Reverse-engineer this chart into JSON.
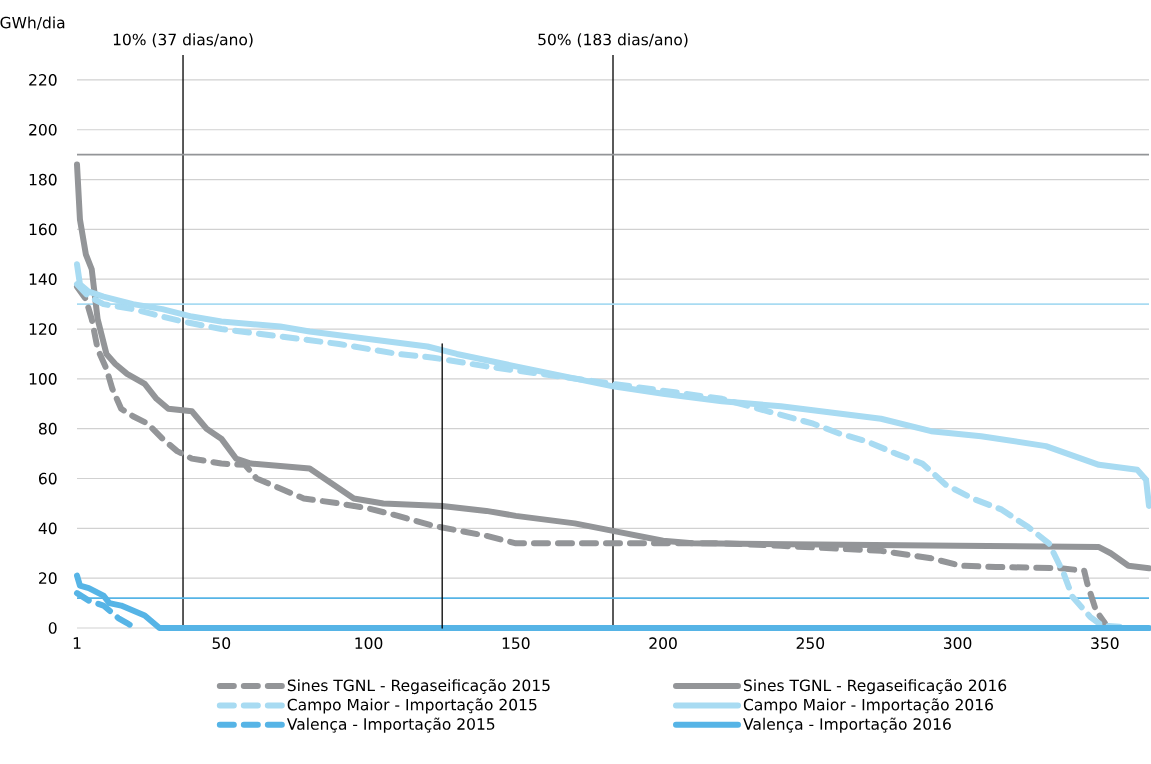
{
  "chart_data": {
    "type": "line",
    "ylabel": "GWh/dia",
    "xlim": [
      1,
      365
    ],
    "xticks": [
      1,
      50,
      100,
      150,
      200,
      250,
      300,
      350
    ],
    "ylim": [
      0,
      230
    ],
    "yticks": [
      0,
      20,
      40,
      60,
      80,
      100,
      120,
      140,
      160,
      180,
      200,
      220
    ],
    "grid": "y",
    "legend": "bottom",
    "ref_lines": [
      {
        "axis": "x",
        "value": 37,
        "label": "10% (37 dias/ano)",
        "color": "#000000"
      },
      {
        "axis": "x",
        "value": 183,
        "label": "50% (183 dias/ano)",
        "color": "#000000"
      },
      {
        "axis": "y",
        "value": 190,
        "label": null,
        "color": "#939598"
      },
      {
        "axis": "y",
        "value": 130,
        "label": null,
        "color": "#a8dbf2"
      },
      {
        "axis": "y",
        "value": 12,
        "label": null,
        "color": "#56b4e6"
      }
    ],
    "series": [
      {
        "name": "Sines TGNL - Regaseificação 2015",
        "color": "#939598",
        "line_style": "dashed",
        "x": [
          1,
          4,
          6,
          8,
          11,
          13,
          16,
          20,
          25,
          30,
          35,
          40,
          50,
          58,
          62,
          70,
          78,
          90,
          100,
          110,
          122,
          140,
          150,
          220,
          240,
          274,
          291,
          301,
          313,
          335,
          343,
          344,
          347,
          350
        ],
        "values": [
          137,
          132,
          124,
          112,
          104,
          96,
          88,
          85,
          82,
          76,
          71,
          68,
          66,
          65.5,
          60,
          56,
          52,
          50,
          48,
          45,
          41,
          37,
          34,
          34,
          33,
          31,
          28,
          25,
          24.5,
          24,
          23,
          18,
          7,
          2
        ]
      },
      {
        "name": "Sines TGNL - Regaseificação 2016",
        "color": "#939598",
        "line_style": "solid",
        "x": [
          1,
          2,
          4,
          6,
          8,
          11,
          14,
          18,
          24,
          28,
          32,
          40,
          45,
          50,
          55,
          60,
          80,
          85,
          90,
          95,
          105,
          125,
          140,
          150,
          170,
          183,
          200,
          210,
          300,
          348,
          352,
          358,
          365
        ],
        "values": [
          186,
          164,
          150,
          144,
          124,
          110,
          106,
          102,
          98,
          92,
          88,
          87,
          80,
          76,
          68,
          66,
          64,
          60,
          56,
          52,
          50,
          49,
          47,
          45,
          42,
          39,
          35,
          34,
          33,
          32.5,
          30,
          25,
          24
        ]
      },
      {
        "name": "Campo Maior - Importação 2015",
        "color": "#a8dbf2",
        "line_style": "dashed",
        "x": [
          1,
          5,
          10,
          20,
          30,
          37,
          50,
          70,
          90,
          110,
          122,
          140,
          183,
          220,
          251,
          260,
          269,
          279,
          288,
          296,
          305,
          315,
          324,
          331,
          336,
          339,
          345,
          349,
          355
        ],
        "values": [
          138,
          133,
          130,
          128,
          125,
          123,
          120,
          117,
          114,
          110,
          108.5,
          105,
          98,
          92,
          82,
          78,
          75,
          70,
          66,
          57.5,
          52,
          47.5,
          40.5,
          34,
          22,
          12.5,
          4.5,
          1,
          0.5
        ]
      },
      {
        "name": "Campo Maior - Importação 2016",
        "color": "#a8dbf2",
        "line_style": "solid",
        "x": [
          1,
          2,
          5,
          10,
          20,
          30,
          40,
          50,
          70,
          80,
          100,
          120,
          130,
          150,
          183,
          200,
          220,
          240,
          274,
          291,
          308,
          330,
          342,
          348,
          361,
          364,
          365
        ],
        "values": [
          146,
          138,
          135,
          133,
          130,
          128,
          125,
          123,
          121,
          119,
          116,
          113,
          110,
          105,
          97,
          94,
          91,
          89,
          84,
          79,
          77,
          73,
          68,
          65.5,
          63.5,
          59.5,
          49
        ]
      },
      {
        "name": "Valença - Importação 2015",
        "color": "#56b4e6",
        "line_style": "dashed",
        "x": [
          1,
          5,
          10,
          12,
          15,
          18,
          20,
          22
        ],
        "values": [
          14,
          11,
          9,
          7,
          4,
          2,
          0.5,
          0
        ]
      },
      {
        "name": "Valença - Importação 2016",
        "color": "#56b4e6",
        "line_style": "solid",
        "x": [
          1,
          2,
          5,
          10,
          12,
          16,
          20,
          24,
          27,
          29,
          365
        ],
        "values": [
          21,
          17,
          16,
          13,
          10,
          9,
          7,
          5,
          2,
          0,
          0
        ]
      },
      {
        "type": "line",
        "color": "#000000",
        "line_style": "solid",
        "x": [
          125,
          125
        ],
        "values": [
          0,
          114
        ]
      }
    ]
  }
}
